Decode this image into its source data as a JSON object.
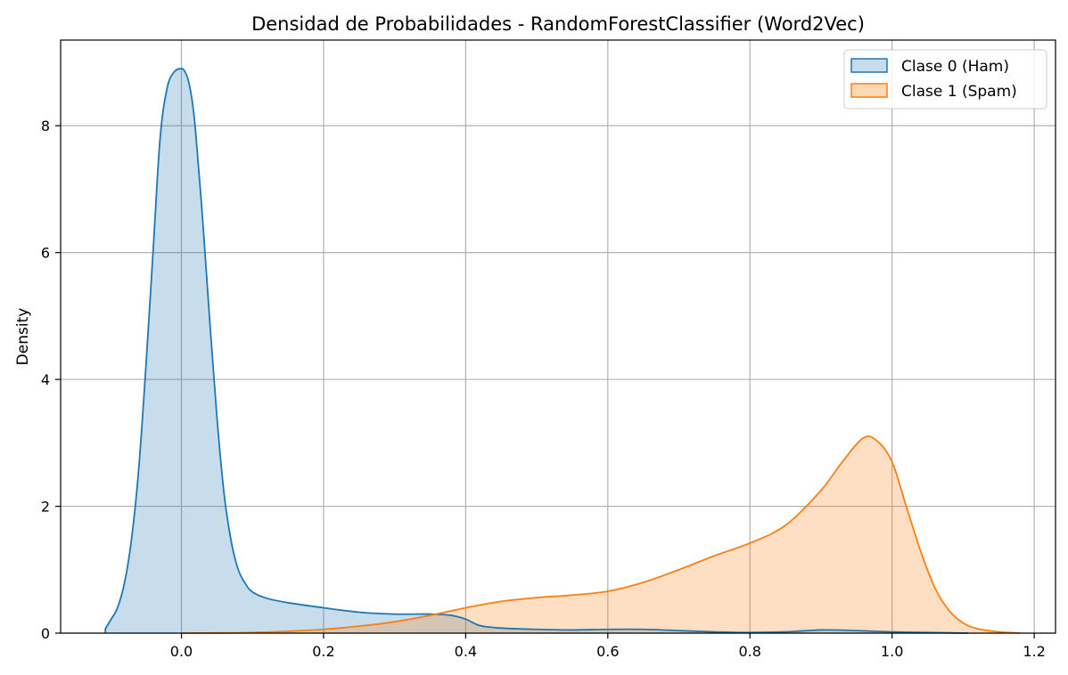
{
  "chart_data": {
    "type": "area",
    "title": "Densidad de Probabilidades - RandomForestClassifier (Word2Vec)",
    "xlabel": "",
    "ylabel": "Density",
    "xlim": [
      -0.17,
      1.23
    ],
    "ylim": [
      0,
      9.35
    ],
    "xticks": [
      0.0,
      0.2,
      0.4,
      0.6,
      0.8,
      1.0,
      1.2
    ],
    "xtick_labels": [
      "0.0",
      "0.2",
      "0.4",
      "0.6",
      "0.8",
      "1.0",
      "1.2"
    ],
    "yticks": [
      0,
      2,
      4,
      6,
      8
    ],
    "ytick_labels": [
      "0",
      "2",
      "4",
      "6",
      "8"
    ],
    "grid": true,
    "legend_position": "top-right",
    "series": [
      {
        "name": "Clase 0 (Ham)",
        "color": "#1f77b4",
        "fill": "#c6dbed",
        "x": [
          -0.107,
          -0.1,
          -0.09,
          -0.08,
          -0.07,
          -0.06,
          -0.05,
          -0.04,
          -0.03,
          -0.02,
          -0.01,
          0.0,
          0.005,
          0.01,
          0.015,
          0.02,
          0.03,
          0.04,
          0.05,
          0.06,
          0.07,
          0.08,
          0.09,
          0.1,
          0.12,
          0.15,
          0.2,
          0.25,
          0.3,
          0.35,
          0.38,
          0.4,
          0.42,
          0.45,
          0.5,
          0.55,
          0.6,
          0.65,
          0.7,
          0.75,
          0.8,
          0.85,
          0.9,
          0.95,
          1.0,
          1.05,
          1.107
        ],
        "y": [
          0.07,
          0.2,
          0.4,
          0.8,
          1.5,
          2.6,
          4.2,
          6.0,
          7.8,
          8.6,
          8.85,
          8.9,
          8.85,
          8.7,
          8.4,
          7.9,
          6.5,
          4.9,
          3.4,
          2.2,
          1.45,
          1.0,
          0.78,
          0.65,
          0.55,
          0.48,
          0.4,
          0.33,
          0.3,
          0.3,
          0.28,
          0.22,
          0.12,
          0.08,
          0.06,
          0.05,
          0.06,
          0.06,
          0.04,
          0.02,
          0.01,
          0.02,
          0.05,
          0.04,
          0.02,
          0.01,
          0.0
        ]
      },
      {
        "name": "Clase 1 (Spam)",
        "color": "#ff7f0e",
        "fill": "#fdd9b5",
        "x": [
          0.0,
          0.05,
          0.1,
          0.15,
          0.2,
          0.25,
          0.3,
          0.35,
          0.4,
          0.45,
          0.5,
          0.55,
          0.6,
          0.65,
          0.7,
          0.75,
          0.8,
          0.85,
          0.9,
          0.93,
          0.96,
          0.98,
          1.0,
          1.02,
          1.04,
          1.06,
          1.08,
          1.1,
          1.12,
          1.15,
          1.18
        ],
        "y": [
          0.0,
          0.003,
          0.01,
          0.03,
          0.06,
          0.11,
          0.18,
          0.28,
          0.4,
          0.5,
          0.56,
          0.6,
          0.66,
          0.8,
          1.0,
          1.22,
          1.42,
          1.7,
          2.25,
          2.7,
          3.08,
          3.02,
          2.7,
          2.0,
          1.3,
          0.72,
          0.36,
          0.16,
          0.07,
          0.02,
          0.0
        ]
      }
    ]
  }
}
